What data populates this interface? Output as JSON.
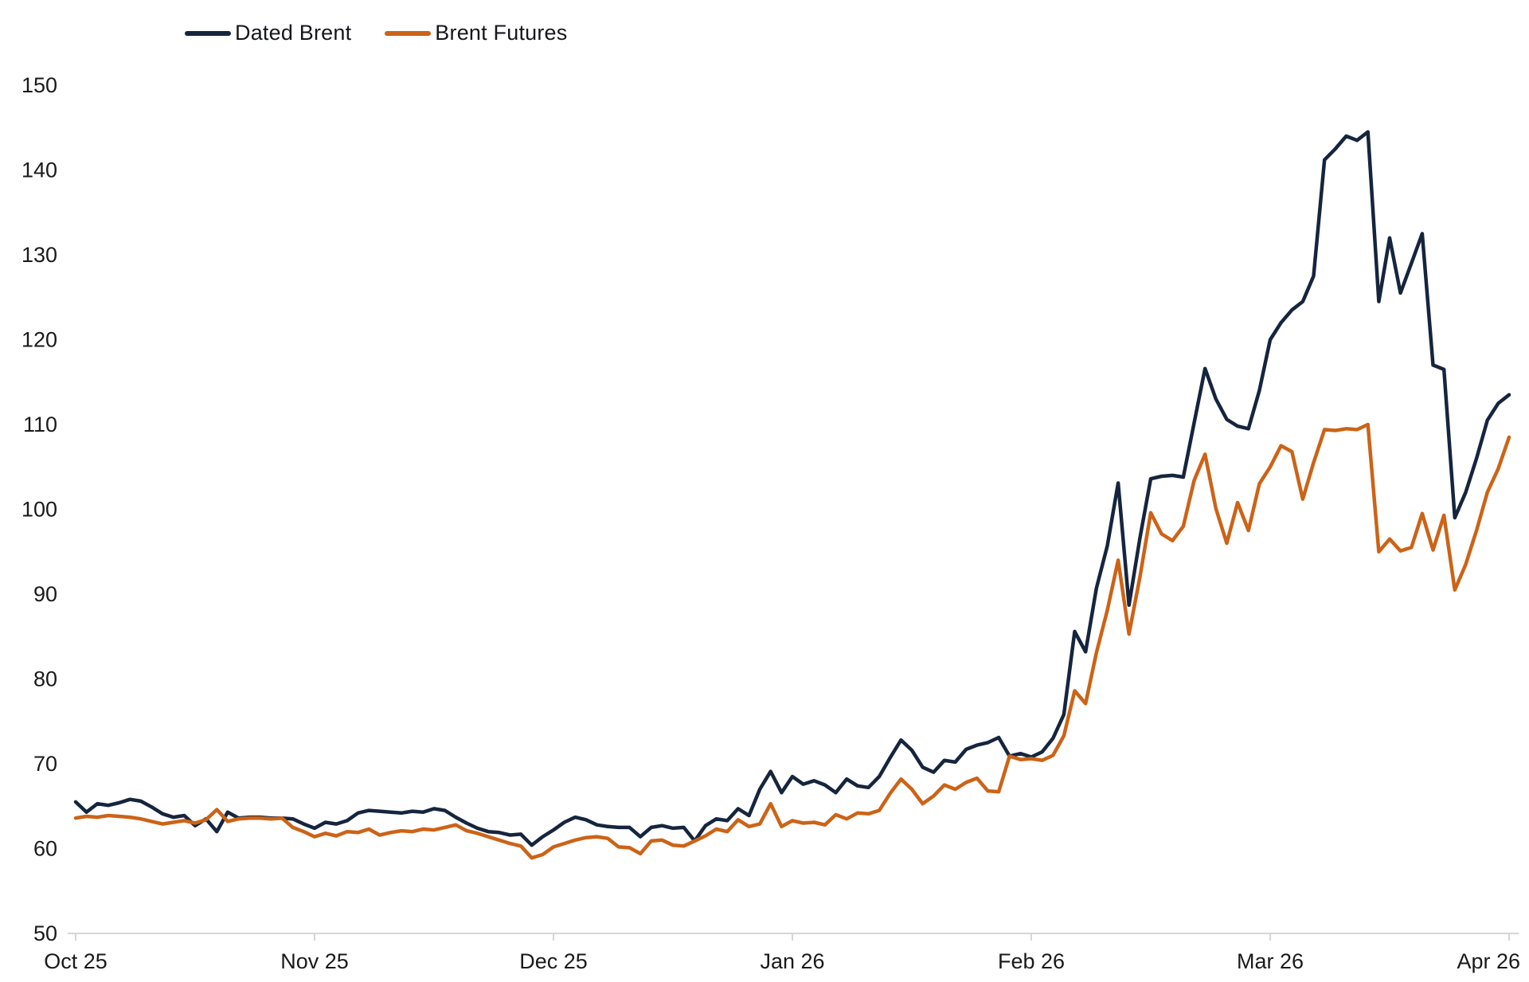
{
  "chart_data": {
    "type": "line",
    "title": "",
    "xlabel": "",
    "ylabel": "",
    "ylim": [
      50,
      150
    ],
    "y_ticks": [
      50,
      60,
      70,
      80,
      90,
      100,
      110,
      120,
      130,
      140,
      150
    ],
    "x_ticks": [
      "Oct 25",
      "Nov 25",
      "Dec 25",
      "Jan 26",
      "Feb 26",
      "Mar 26",
      "Apr 26"
    ],
    "x_tick_indices": [
      0,
      22,
      44,
      66,
      88,
      110,
      132
    ],
    "grid": false,
    "legend_position": "top-left",
    "axis_color": "#d6d6d6",
    "text_color": "#1a1a1a",
    "series": [
      {
        "name": "Dated Brent",
        "color": "#16253e",
        "values": [
          65.5,
          64.3,
          65.3,
          65.1,
          65.4,
          65.8,
          65.6,
          64.9,
          64.1,
          63.7,
          63.9,
          62.7,
          63.5,
          62.0,
          64.3,
          63.6,
          63.7,
          63.7,
          63.6,
          63.6,
          63.5,
          62.9,
          62.4,
          63.1,
          62.9,
          63.3,
          64.2,
          64.5,
          64.4,
          64.3,
          64.2,
          64.4,
          64.3,
          64.7,
          64.5,
          63.7,
          63.0,
          62.4,
          62.0,
          61.9,
          61.6,
          61.7,
          60.4,
          61.4,
          62.2,
          63.1,
          63.7,
          63.4,
          62.8,
          62.6,
          62.5,
          62.5,
          61.4,
          62.5,
          62.7,
          62.4,
          62.5,
          60.9,
          62.7,
          63.5,
          63.3,
          64.7,
          63.9,
          67.0,
          69.1,
          66.6,
          68.5,
          67.6,
          68.0,
          67.5,
          66.6,
          68.2,
          67.4,
          67.2,
          68.5,
          70.7,
          72.8,
          71.6,
          69.6,
          69.0,
          70.4,
          70.2,
          71.7,
          72.2,
          72.5,
          73.1,
          70.9,
          71.2,
          70.8,
          71.4,
          73.0,
          75.8,
          85.6,
          83.2,
          90.7,
          95.7,
          103.1,
          88.7,
          96.6,
          103.6,
          103.9,
          104.0,
          103.8,
          110.2,
          116.6,
          113.0,
          110.6,
          109.8,
          109.5,
          114.0,
          120.0,
          122.0,
          123.5,
          124.5,
          127.5,
          141.2,
          142.5,
          144.0,
          143.5,
          144.5,
          124.5,
          132.0,
          125.5,
          129.0,
          132.5,
          117.0,
          116.5,
          99.0,
          102.0,
          106.0,
          110.5,
          112.5,
          113.5
        ]
      },
      {
        "name": "Brent Futures",
        "color": "#cc6317",
        "values": [
          63.6,
          63.8,
          63.7,
          63.9,
          63.8,
          63.7,
          63.5,
          63.2,
          62.9,
          63.1,
          63.3,
          63.0,
          63.4,
          64.6,
          63.2,
          63.5,
          63.6,
          63.6,
          63.5,
          63.6,
          62.5,
          62.0,
          61.4,
          61.8,
          61.5,
          62.0,
          61.9,
          62.3,
          61.6,
          61.9,
          62.1,
          62.0,
          62.3,
          62.2,
          62.5,
          62.8,
          62.1,
          61.8,
          61.4,
          61.0,
          60.6,
          60.3,
          58.9,
          59.3,
          60.2,
          60.6,
          61.0,
          61.3,
          61.4,
          61.2,
          60.2,
          60.1,
          59.4,
          60.9,
          61.0,
          60.4,
          60.3,
          60.9,
          61.5,
          62.3,
          62.0,
          63.4,
          62.6,
          62.9,
          65.3,
          62.6,
          63.3,
          63.0,
          63.1,
          62.8,
          64.0,
          63.5,
          64.2,
          64.1,
          64.5,
          66.5,
          68.2,
          67.0,
          65.3,
          66.2,
          67.5,
          67.0,
          67.8,
          68.3,
          66.8,
          66.7,
          70.9,
          70.5,
          70.6,
          70.4,
          71.0,
          73.3,
          78.6,
          77.1,
          83.1,
          88.1,
          94.0,
          85.3,
          92.0,
          99.6,
          97.1,
          96.3,
          98.0,
          103.4,
          106.5,
          100.1,
          96.0,
          100.8,
          97.5,
          103.0,
          105.0,
          107.5,
          106.8,
          101.2,
          105.5,
          109.4,
          109.3,
          109.5,
          109.4,
          110.0,
          95.0,
          96.5,
          95.1,
          95.5,
          99.5,
          95.2,
          99.3,
          90.5,
          93.5,
          97.5,
          102.0,
          104.8,
          108.5
        ]
      }
    ]
  }
}
